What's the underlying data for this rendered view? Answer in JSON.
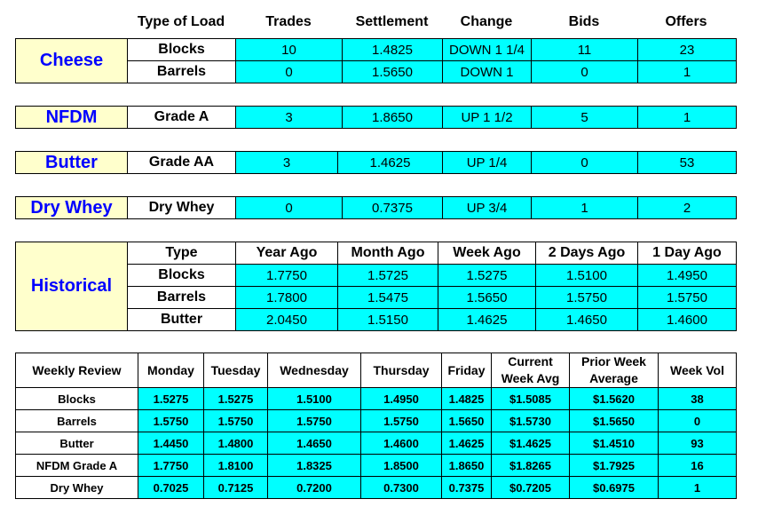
{
  "headers": {
    "type_of_load": "Type of Load",
    "trades": "Trades",
    "settlement": "Settlement",
    "change": "Change",
    "bids": "Bids",
    "offers": "Offers"
  },
  "cheese": {
    "label": "Cheese",
    "rows": [
      {
        "type": "Blocks",
        "trades": "10",
        "settlement": "1.4825",
        "change": "DOWN 1 1/4",
        "bids": "11",
        "offers": "23"
      },
      {
        "type": "Barrels",
        "trades": "0",
        "settlement": "1.5650",
        "change": "DOWN 1",
        "bids": "0",
        "offers": "1"
      }
    ]
  },
  "nfdm": {
    "label": "NFDM",
    "type": "Grade A",
    "trades": "3",
    "settlement": "1.8650",
    "change": "UP 1 1/2",
    "bids": "5",
    "offers": "1"
  },
  "butter": {
    "label": "Butter",
    "type": "Grade AA",
    "trades": "3",
    "settlement": "1.4625",
    "change": "UP 1/4",
    "bids": "0",
    "offers": "53"
  },
  "dry_whey": {
    "label": "Dry Whey",
    "type": "Dry Whey",
    "trades": "0",
    "settlement": "0.7375",
    "change": "UP 3/4",
    "bids": "1",
    "offers": "2"
  },
  "historical": {
    "label": "Historical",
    "columns": [
      "Type",
      "Year Ago",
      "Month Ago",
      "Week Ago",
      "2 Days Ago",
      "1 Day Ago"
    ],
    "rows": [
      {
        "type": "Blocks",
        "values": [
          "1.7750",
          "1.5725",
          "1.5275",
          "1.5100",
          "1.4950"
        ]
      },
      {
        "type": "Barrels",
        "values": [
          "1.7800",
          "1.5475",
          "1.5650",
          "1.5750",
          "1.5750"
        ]
      },
      {
        "type": "Butter",
        "values": [
          "2.0450",
          "1.5150",
          "1.4625",
          "1.4650",
          "1.4600"
        ]
      }
    ]
  },
  "weekly": {
    "columns": [
      "Weekly Review",
      "Monday",
      "Tuesday",
      "Wednesday",
      "Thursday",
      "Friday",
      "Current Week Avg",
      "Prior Week Average",
      "Week Vol"
    ],
    "rows": [
      {
        "label": "Blocks",
        "values": [
          "1.5275",
          "1.5275",
          "1.5100",
          "1.4950",
          "1.4825",
          "$1.5085",
          "$1.5620",
          "38"
        ]
      },
      {
        "label": "Barrels",
        "values": [
          "1.5750",
          "1.5750",
          "1.5750",
          "1.5750",
          "1.5650",
          "$1.5730",
          "$1.5650",
          "0"
        ]
      },
      {
        "label": "Butter",
        "values": [
          "1.4450",
          "1.4800",
          "1.4650",
          "1.4600",
          "1.4625",
          "$1.4625",
          "$1.4510",
          "93"
        ]
      },
      {
        "label": "NFDM Grade A",
        "values": [
          "1.7750",
          "1.8100",
          "1.8325",
          "1.8500",
          "1.8650",
          "$1.8265",
          "$1.7925",
          "16"
        ]
      },
      {
        "label": "Dry Whey",
        "values": [
          "0.7025",
          "0.7125",
          "0.7200",
          "0.7300",
          "0.7375",
          "$0.7205",
          "$0.6975",
          "1"
        ]
      }
    ]
  }
}
